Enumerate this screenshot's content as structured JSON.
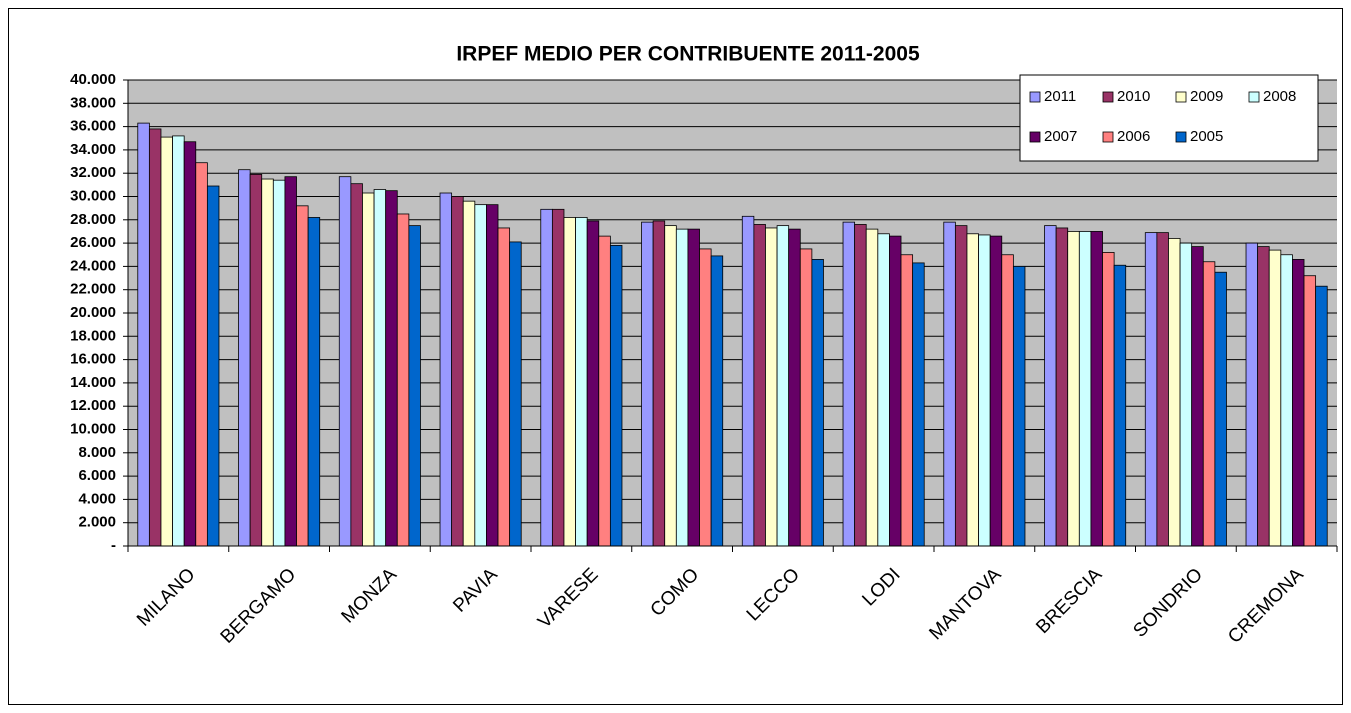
{
  "chart_data": {
    "type": "bar",
    "title": "IRPEF MEDIO PER CONTRIBUENTE 2011-2005",
    "categories": [
      "MILANO",
      "BERGAMO",
      "MONZA",
      "PAVIA",
      "VARESE",
      "COMO",
      "LECCO",
      "LODI",
      "MANTOVA",
      "BRESCIA",
      "SONDRIO",
      "CREMONA"
    ],
    "series": [
      {
        "name": "2011",
        "color": "#9999ff",
        "values": [
          36300,
          32300,
          31700,
          30300,
          28900,
          27800,
          28300,
          27800,
          27800,
          27500,
          26900,
          26000
        ]
      },
      {
        "name": "2010",
        "color": "#993366",
        "values": [
          35800,
          31900,
          31100,
          30000,
          28900,
          27900,
          27600,
          27600,
          27500,
          27300,
          26900,
          25700
        ]
      },
      {
        "name": "2009",
        "color": "#ffffcc",
        "values": [
          35100,
          31500,
          30300,
          29600,
          28200,
          27500,
          27300,
          27200,
          26800,
          27000,
          26400,
          25400
        ]
      },
      {
        "name": "2008",
        "color": "#ccffff",
        "values": [
          35200,
          31400,
          30600,
          29300,
          28200,
          27200,
          27500,
          26800,
          26700,
          27000,
          26000,
          25000
        ]
      },
      {
        "name": "2007",
        "color": "#660066",
        "values": [
          34700,
          31700,
          30500,
          29300,
          27900,
          27200,
          27200,
          26600,
          26600,
          27000,
          25700,
          24600
        ]
      },
      {
        "name": "2006",
        "color": "#ff8080",
        "values": [
          32900,
          29200,
          28500,
          27300,
          26600,
          25500,
          25500,
          25000,
          25000,
          25200,
          24400,
          23200
        ]
      },
      {
        "name": "2005",
        "color": "#0066cc",
        "values": [
          30900,
          28200,
          27500,
          26100,
          25800,
          24900,
          24600,
          24300,
          24000,
          24100,
          23500,
          22300
        ]
      }
    ],
    "ylim": [
      0,
      40000
    ],
    "yticks": [
      {
        "value": 0,
        "label": "-"
      },
      {
        "value": 2000,
        "label": "2.000"
      },
      {
        "value": 4000,
        "label": "4.000"
      },
      {
        "value": 6000,
        "label": "6.000"
      },
      {
        "value": 8000,
        "label": "8.000"
      },
      {
        "value": 10000,
        "label": "10.000"
      },
      {
        "value": 12000,
        "label": "12.000"
      },
      {
        "value": 14000,
        "label": "14.000"
      },
      {
        "value": 16000,
        "label": "16.000"
      },
      {
        "value": 18000,
        "label": "18.000"
      },
      {
        "value": 20000,
        "label": "20.000"
      },
      {
        "value": 22000,
        "label": "22.000"
      },
      {
        "value": 24000,
        "label": "24.000"
      },
      {
        "value": 26000,
        "label": "26.000"
      },
      {
        "value": 28000,
        "label": "28.000"
      },
      {
        "value": 30000,
        "label": "30.000"
      },
      {
        "value": 32000,
        "label": "32.000"
      },
      {
        "value": 34000,
        "label": "34.000"
      },
      {
        "value": 36000,
        "label": "36.000"
      },
      {
        "value": 38000,
        "label": "38.000"
      },
      {
        "value": 40000,
        "label": "40.000"
      }
    ],
    "grid": true,
    "legend": "upper right"
  }
}
